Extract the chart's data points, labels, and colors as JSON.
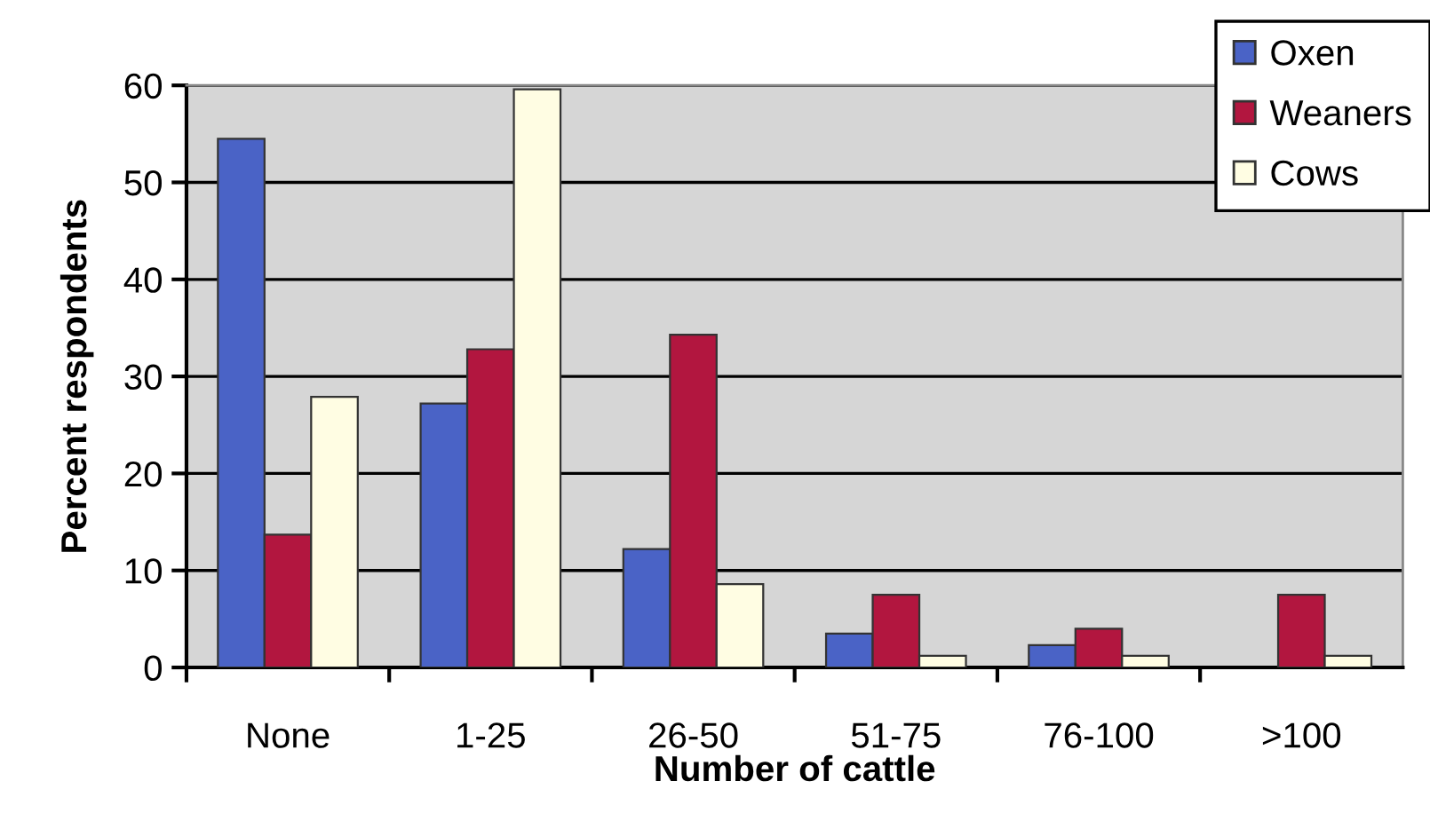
{
  "chart_data": {
    "type": "bar",
    "xlabel": "Number of cattle",
    "ylabel": "Percent respondents",
    "categories": [
      "None",
      "1-25",
      "26-50",
      "51-75",
      "76-100",
      ">100"
    ],
    "series": [
      {
        "name": "Oxen",
        "color": "#4a63c6",
        "values": [
          54.5,
          27.2,
          12.2,
          3.5,
          2.3,
          null
        ]
      },
      {
        "name": "Weaners",
        "color": "#b2163f",
        "values": [
          13.7,
          32.8,
          34.3,
          7.5,
          4.0,
          7.5
        ]
      },
      {
        "name": "Cows",
        "color": "#fffde3",
        "values": [
          27.9,
          59.6,
          8.6,
          1.2,
          1.2,
          1.2
        ]
      }
    ],
    "ylim": [
      0,
      60
    ],
    "yticks": [
      0,
      10,
      20,
      30,
      40,
      50,
      60
    ],
    "grid": "y",
    "legend": "top right"
  }
}
